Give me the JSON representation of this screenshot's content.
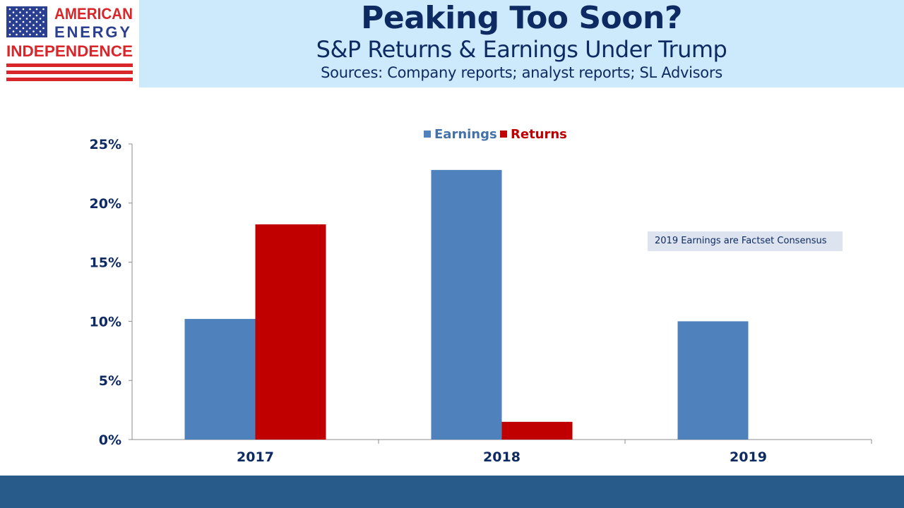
{
  "logo": {
    "line1": "AMERICAN",
    "line2": "ENERGY",
    "line3": "INDEPENDENCE",
    "colors": {
      "blue": "#2a3f8f",
      "red": "#d8262b"
    }
  },
  "header": {
    "title": "Peaking Too Soon?",
    "subtitle": "S&P Returns & Earnings Under Trump",
    "sources": "Sources: Company reports; analyst reports; SL Advisors"
  },
  "chart_data": {
    "type": "bar",
    "categories": [
      "2017",
      "2018",
      "2019"
    ],
    "series": [
      {
        "name": "Earnings",
        "values": [
          10.2,
          22.8,
          10.0
        ],
        "color": "#4f81bd"
      },
      {
        "name": "Returns",
        "values": [
          18.2,
          1.5,
          null
        ],
        "color": "#c00000"
      }
    ],
    "ylim": [
      0,
      25
    ],
    "yticks": [
      "0%",
      "5%",
      "10%",
      "15%",
      "20%",
      "25%"
    ],
    "ytick_values": [
      0,
      5,
      10,
      15,
      20,
      25
    ],
    "legend_position": "top-center",
    "grid": false,
    "annotation": "2019 Earnings are Factset Consensus"
  }
}
